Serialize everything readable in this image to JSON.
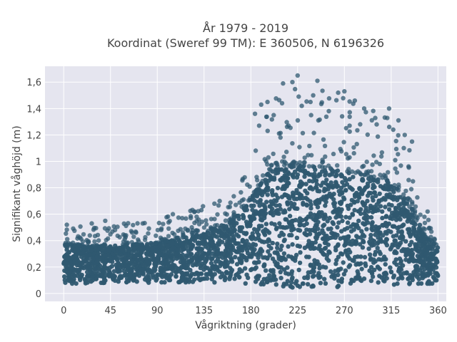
{
  "chart_data": {
    "type": "scatter",
    "title_line1": "År 1979 - 2019",
    "title_line2": "Koordinat (Sweref 99 TM): E 360506, N 6196326",
    "xlabel": "Vågriktning (grader)",
    "ylabel": "Signifikant våghöjd (m)",
    "xlim": [
      -18,
      368
    ],
    "ylim": [
      -0.06,
      1.72
    ],
    "x_ticks": [
      0,
      45,
      90,
      135,
      180,
      225,
      270,
      315,
      360
    ],
    "x_tick_labels": [
      "0",
      "45",
      "90",
      "135",
      "180",
      "225",
      "270",
      "315",
      "360"
    ],
    "y_ticks": [
      0,
      0.2,
      0.4,
      0.6,
      0.8,
      1,
      1.2,
      1.4,
      1.6
    ],
    "y_tick_labels": [
      "0",
      "0,2",
      "0,4",
      "0,6",
      "0,8",
      "1",
      "1,2",
      "1,4",
      "1,6"
    ],
    "grid": true,
    "marker_color": "#2f5870",
    "plot_background": "#e5e5ef",
    "envelope": {
      "direction_deg": [
        0,
        45,
        90,
        135,
        160,
        180,
        200,
        225,
        250,
        270,
        290,
        315,
        330,
        345,
        360
      ],
      "lower_hs_m": [
        0.07,
        0.08,
        0.08,
        0.08,
        0.08,
        0.07,
        0.05,
        0.04,
        0.04,
        0.05,
        0.05,
        0.05,
        0.06,
        0.07,
        0.07
      ],
      "dense_upper_hs_m": [
        0.36,
        0.36,
        0.38,
        0.46,
        0.55,
        0.72,
        0.95,
        0.97,
        0.95,
        0.92,
        0.9,
        0.85,
        0.7,
        0.45,
        0.36
      ],
      "outer_upper_hs_m": [
        0.5,
        0.52,
        0.58,
        0.65,
        0.7,
        1.05,
        1.45,
        1.65,
        1.55,
        1.52,
        1.4,
        1.4,
        1.2,
        0.6,
        0.5
      ]
    },
    "outliers": [
      {
        "x": 225,
        "y": 1.65
      },
      {
        "x": 244,
        "y": 1.61
      },
      {
        "x": 211,
        "y": 1.59
      },
      {
        "x": 220,
        "y": 1.6
      },
      {
        "x": 270,
        "y": 1.53
      },
      {
        "x": 264,
        "y": 1.52
      },
      {
        "x": 240,
        "y": 1.5
      },
      {
        "x": 226,
        "y": 1.49
      },
      {
        "x": 196,
        "y": 1.45
      },
      {
        "x": 190,
        "y": 1.43
      },
      {
        "x": 229,
        "y": 1.42
      },
      {
        "x": 289,
        "y": 1.4
      },
      {
        "x": 313,
        "y": 1.4
      },
      {
        "x": 280,
        "y": 1.46
      },
      {
        "x": 255,
        "y": 1.38
      },
      {
        "x": 202,
        "y": 1.35
      },
      {
        "x": 238,
        "y": 1.35
      },
      {
        "x": 210,
        "y": 1.44
      },
      {
        "x": 184,
        "y": 1.36
      },
      {
        "x": 245,
        "y": 1.31
      },
      {
        "x": 301,
        "y": 1.28
      },
      {
        "x": 322,
        "y": 1.31
      },
      {
        "x": 317,
        "y": 1.24
      },
      {
        "x": 188,
        "y": 1.27
      },
      {
        "x": 275,
        "y": 1.27
      },
      {
        "x": 328,
        "y": 1.2
      },
      {
        "x": 335,
        "y": 1.15
      },
      {
        "x": 105,
        "y": 0.6
      },
      {
        "x": 114,
        "y": 0.57
      },
      {
        "x": 126,
        "y": 0.62
      },
      {
        "x": 134,
        "y": 0.66
      },
      {
        "x": 145,
        "y": 0.68
      },
      {
        "x": 150,
        "y": 0.7
      },
      {
        "x": 40,
        "y": 0.55
      },
      {
        "x": 27,
        "y": 0.53
      },
      {
        "x": 76,
        "y": 0.53
      },
      {
        "x": 3,
        "y": 0.52
      },
      {
        "x": 350,
        "y": 0.62
      },
      {
        "x": 347,
        "y": 0.58
      }
    ]
  }
}
